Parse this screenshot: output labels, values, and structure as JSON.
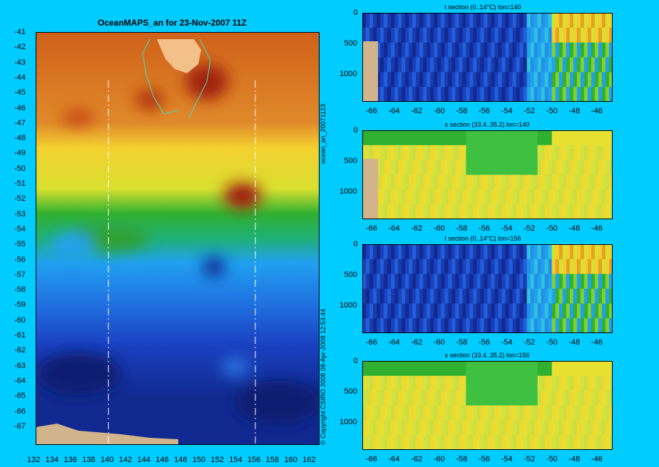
{
  "map": {
    "title": "OceanMAPS_an for 23-Nov-2007 11Z",
    "side_label": "ocean_an_20071123",
    "copyright": "© Copyright CSIRO 2008    08-Apr-2008 12:53:44",
    "lat_ticks": [
      "-41",
      "-42",
      "-43",
      "-44",
      "-45",
      "-46",
      "-47",
      "-48",
      "-49",
      "-50",
      "-51",
      "-52",
      "-53",
      "-54",
      "-55",
      "-56",
      "-57",
      "-58",
      "-59",
      "-60",
      "-61",
      "-62",
      "-63",
      "-64",
      "-65",
      "-66",
      "-67"
    ],
    "lon_ticks": [
      "132",
      "134",
      "136",
      "138",
      "140",
      "142",
      "144",
      "146",
      "148",
      "150",
      "152",
      "154",
      "156",
      "158",
      "160",
      "162"
    ],
    "section_lines": [
      140,
      156
    ]
  },
  "chart_data": [
    {
      "type": "heatmap",
      "title": "OceanMAPS_an for 23-Nov-2007 11Z",
      "xrange": [
        132,
        163
      ],
      "yrange": [
        -67.5,
        -41
      ],
      "x_ticks": [
        132,
        134,
        136,
        138,
        140,
        142,
        144,
        146,
        148,
        150,
        152,
        154,
        156,
        158,
        160,
        162
      ],
      "y_ticks": [
        -41,
        -42,
        -43,
        -44,
        -45,
        -46,
        -47,
        -48,
        -49,
        -50,
        -51,
        -52,
        -53,
        -54,
        -55,
        -56,
        -57,
        -58,
        -59,
        -60,
        -61,
        -62,
        -63,
        -64,
        -65,
        -66,
        -67
      ]
    },
    {
      "type": "heatmap",
      "title": "t section (0..14°C) lon=140",
      "xrange": [
        -67,
        -44
      ],
      "yrange": [
        1450,
        0
      ],
      "x_ticks": [
        "-66",
        "-64",
        "-62",
        "-60",
        "-58",
        "-56",
        "-54",
        "-52",
        "-50",
        "-48",
        "-46"
      ],
      "y_ticks": [
        "0",
        "500",
        "1000"
      ]
    },
    {
      "type": "heatmap",
      "title": "s section (33.4..35.2) lon=140",
      "xrange": [
        -67,
        -44
      ],
      "yrange": [
        1450,
        0
      ],
      "x_ticks": [
        "-66",
        "-64",
        "-62",
        "-60",
        "-58",
        "-56",
        "-54",
        "-52",
        "-50",
        "-48",
        "-46"
      ],
      "y_ticks": [
        "0",
        "500",
        "1000"
      ]
    },
    {
      "type": "heatmap",
      "title": "t section (0..14°C) lon=156",
      "xrange": [
        -67,
        -44
      ],
      "yrange": [
        1450,
        0
      ],
      "x_ticks": [
        "-66",
        "-64",
        "-62",
        "-60",
        "-58",
        "-56",
        "-54",
        "-52",
        "-50",
        "-48",
        "-46"
      ],
      "y_ticks": [
        "0",
        "500",
        "1000"
      ]
    },
    {
      "type": "heatmap",
      "title": "s section (33.4..35.2) lon=156",
      "xrange": [
        -67,
        -44
      ],
      "yrange": [
        1450,
        0
      ],
      "x_ticks": [
        "-66",
        "-64",
        "-62",
        "-60",
        "-58",
        "-56",
        "-54",
        "-52",
        "-50",
        "-48",
        "-46"
      ],
      "y_ticks": [
        "0",
        "500",
        "1000"
      ]
    }
  ],
  "sections": [
    {
      "id": "t140",
      "title": "t section (0..14°C) lon=140",
      "y_ticks": [
        "0",
        "500",
        "1000"
      ],
      "x_ticks": [
        "-66",
        "-64",
        "-62",
        "-60",
        "-58",
        "-56",
        "-54",
        "-52",
        "-50",
        "-48",
        "-46"
      ]
    },
    {
      "id": "s140",
      "title": "s section (33.4..35.2) lon=140",
      "y_ticks": [
        "0",
        "500",
        "1000"
      ],
      "x_ticks": [
        "-66",
        "-64",
        "-62",
        "-60",
        "-58",
        "-56",
        "-54",
        "-52",
        "-50",
        "-48",
        "-46"
      ]
    },
    {
      "id": "t156",
      "title": "t section (0..14°C) lon=156",
      "y_ticks": [
        "0",
        "500",
        "1000"
      ],
      "x_ticks": [
        "-66",
        "-64",
        "-62",
        "-60",
        "-58",
        "-56",
        "-54",
        "-52",
        "-50",
        "-48",
        "-46"
      ]
    },
    {
      "id": "s156",
      "title": "s section (33.4..35.2) lon=156",
      "y_ticks": [
        "0",
        "500",
        "1000"
      ],
      "x_ticks": [
        "-66",
        "-64",
        "-62",
        "-60",
        "-58",
        "-56",
        "-54",
        "-52",
        "-50",
        "-48",
        "-46"
      ]
    }
  ],
  "colors": {
    "background": "#00ccff",
    "land": "#d2b48c",
    "contour": "#40e0c0"
  }
}
